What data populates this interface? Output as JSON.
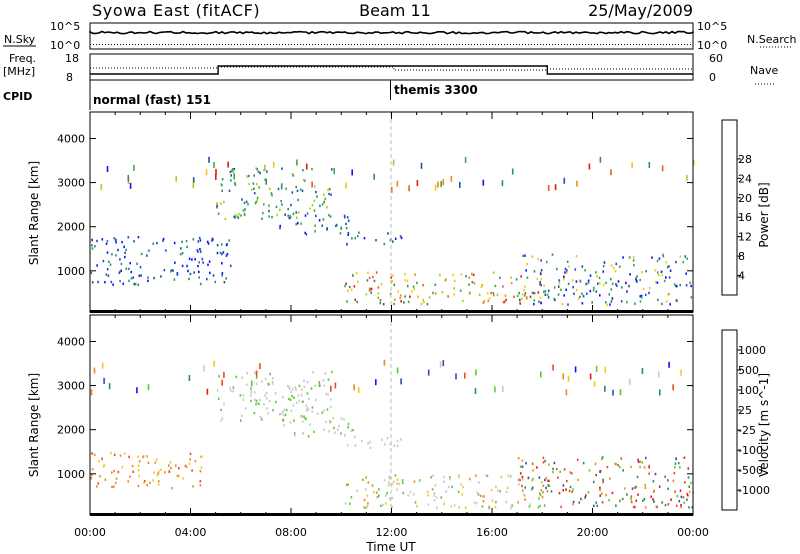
{
  "header": {
    "station": "Syowa East (fitACF)",
    "beam": "Beam 11",
    "date": "25/May/2009"
  },
  "strip_labels": {
    "nsky": "N.Sky",
    "nsearch": "N.Search",
    "freq": "Freq.",
    "freq_unit": "[MHz]",
    "nave": "Nave",
    "cpid": "CPID",
    "ten5_left": "10^5",
    "ten0_left": "10^0",
    "ten5_right": "10^5",
    "ten0_right": "10^0",
    "freq_hi": "18",
    "freq_lo": "8",
    "nave_hi": "60",
    "nave_lo": "0"
  },
  "cpid_segments": [
    {
      "start_hour": 0,
      "label": "normal (fast) 151"
    },
    {
      "start_hour": 12,
      "label": "themis 3300"
    }
  ],
  "chart_data": [
    {
      "type": "heatmap",
      "title": "Power",
      "xlabel": "",
      "ylabel": "Slant Range [km]",
      "xlim_hours": [
        0,
        24
      ],
      "x_tick_labels": [
        "00:00",
        "04:00",
        "08:00",
        "12:00",
        "16:00",
        "20:00",
        "00:00"
      ],
      "ylim": [
        180,
        4600
      ],
      "y_ticks": [
        1000,
        2000,
        3000,
        4000
      ],
      "colorbar": {
        "label": "Power [dB]",
        "tick_labels": [
          "4",
          "8",
          "12",
          "16",
          "20",
          "24",
          "28"
        ],
        "colors": [
          "#0a14ff",
          "#1f4fb4",
          "#2f8f6a",
          "#3caa3c",
          "#b5c81e",
          "#f2c619",
          "#f08a1e",
          "#ee5a1e",
          "#e01a14"
        ]
      },
      "scatter_regions": [
        {
          "t0": 5.0,
          "t1": 9.6,
          "r0": 2200,
          "r1": 3350,
          "vals": [
            1,
            2,
            3,
            4
          ]
        },
        {
          "t0": 7.5,
          "t1": 10.5,
          "r0": 1850,
          "r1": 2300,
          "vals": [
            0,
            1,
            2,
            3
          ]
        },
        {
          "t0": 10.0,
          "t1": 12.4,
          "r0": 1600,
          "r1": 1900,
          "vals": [
            0,
            1,
            2
          ]
        },
        {
          "t0": 0.0,
          "t1": 5.6,
          "r0": 700,
          "r1": 1800,
          "vals": [
            0,
            1,
            2
          ]
        },
        {
          "t0": 10.0,
          "t1": 18.0,
          "r0": 250,
          "r1": 1000,
          "vals": [
            2,
            3,
            4,
            5,
            6,
            7,
            8
          ]
        },
        {
          "t0": 17.0,
          "t1": 24.0,
          "r0": 250,
          "r1": 1400,
          "vals": [
            0,
            1,
            2,
            3,
            5
          ]
        }
      ]
    },
    {
      "type": "heatmap",
      "title": "Velocity",
      "xlabel": "Time UT",
      "ylabel": "Slant Range [km]",
      "xlim_hours": [
        0,
        24
      ],
      "x_tick_labels": [
        "00:00",
        "04:00",
        "08:00",
        "12:00",
        "16:00",
        "20:00",
        "00:00"
      ],
      "ylim": [
        180,
        4600
      ],
      "y_ticks": [
        1000,
        2000,
        3000,
        4000
      ],
      "colorbar": {
        "label": "Velocity [m s^-1]",
        "tick_labels": [
          "1000",
          "500",
          "100",
          "25",
          "-25",
          "-100",
          "-500",
          "-1000"
        ],
        "colors": [
          "#0a14ff",
          "#2c4fb4",
          "#2e8a60",
          "#5ec83a",
          "#c8c8c8",
          "#f5c81e",
          "#f08a1e",
          "#ee4a1e",
          "#e01a14"
        ]
      },
      "scatter_regions": [
        {
          "t0": 5.0,
          "t1": 9.6,
          "r0": 2200,
          "r1": 3350,
          "vals": [
            4,
            4,
            4,
            3
          ]
        },
        {
          "t0": 7.5,
          "t1": 10.5,
          "r0": 1850,
          "r1": 2300,
          "vals": [
            4,
            4,
            3
          ]
        },
        {
          "t0": 10.0,
          "t1": 12.4,
          "r0": 1600,
          "r1": 1900,
          "vals": [
            4,
            4
          ]
        },
        {
          "t0": 0.0,
          "t1": 4.5,
          "r0": 700,
          "r1": 1500,
          "vals": [
            5,
            6,
            7,
            6
          ]
        },
        {
          "t0": 10.0,
          "t1": 18.0,
          "r0": 250,
          "r1": 1000,
          "vals": [
            4,
            4,
            5,
            6,
            3
          ]
        },
        {
          "t0": 17.0,
          "t1": 24.0,
          "r0": 250,
          "r1": 1400,
          "vals": [
            1,
            2,
            3,
            6,
            7,
            8
          ]
        }
      ]
    }
  ]
}
